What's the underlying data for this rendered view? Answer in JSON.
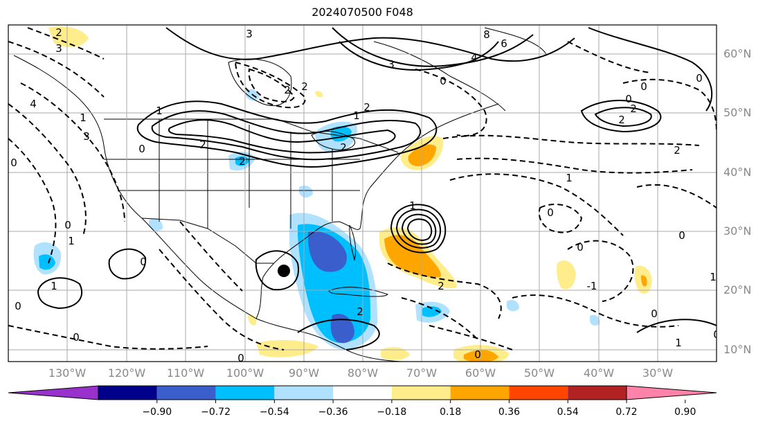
{
  "title": "2024070500 F048",
  "lat_labels": [
    "60°N",
    "50°N",
    "40°N",
    "30°N",
    "20°N",
    "10°N"
  ],
  "lon_labels": [
    "130°W",
    "120°W",
    "110°W",
    "100°W",
    "90°W",
    "80°W",
    "70°W",
    "60°W",
    "50°W",
    "40°W",
    "30°W"
  ],
  "colorbar": {
    "colors": [
      "#9932cc",
      "#00008b",
      "#3a5fcd",
      "#00bfff",
      "#b0e2ff",
      "#ffffff",
      "#ffec8b",
      "#ffa500",
      "#ff4500",
      "#b22222",
      "#ff82ab"
    ],
    "labels": [
      "−0.90",
      "−0.72",
      "−0.54",
      "−0.36",
      "−0.18",
      "0.18",
      "0.36",
      "0.54",
      "0.72",
      "0.90"
    ]
  },
  "contour_labels": [
    "3",
    "2",
    "8",
    "6",
    "4",
    "3",
    "2",
    "3",
    "2",
    "2",
    "0",
    "2",
    "1",
    "0",
    "2",
    "2",
    "1",
    "4",
    "1",
    "3",
    "0",
    "2",
    "2",
    "0",
    "0",
    "0",
    "2",
    "0",
    "1",
    "1",
    "0",
    "0",
    "1",
    "0",
    "0",
    "0",
    "1",
    "2",
    "0",
    "2",
    "0",
    "0",
    "1",
    "0",
    "-1",
    "0",
    "1"
  ]
}
